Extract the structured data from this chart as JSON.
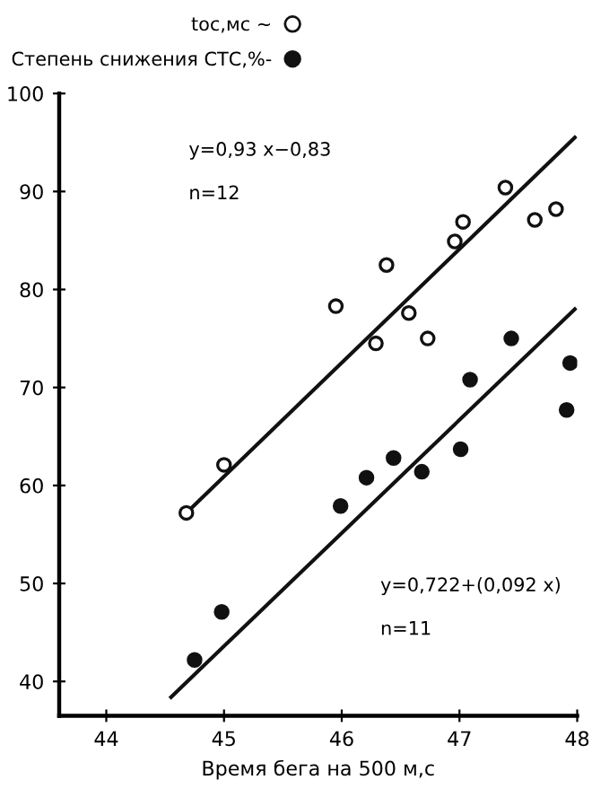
{
  "chart_data": {
    "type": "scatter",
    "xlabel": "Время бега на 500 м,с",
    "xlim": [
      43.6,
      48
    ],
    "ylim": [
      36.5,
      100
    ],
    "xticks": [
      44,
      45,
      46,
      47,
      48
    ],
    "yticks": [
      40,
      50,
      60,
      70,
      80,
      90,
      100
    ],
    "grid": false,
    "legend": "top left",
    "marker": "circle",
    "annotations": [
      "y=0,93 x−0,83",
      "n=12",
      "y=0,722+(0,092 x)",
      "n=11"
    ],
    "series": [
      {
        "name": "tос,мс ~",
        "color": "#ffffff",
        "x": [
          44.68,
          45.0,
          45.95,
          46.29,
          46.38,
          46.57,
          46.73,
          46.96,
          47.03,
          47.39,
          47.64,
          47.82
        ],
        "values": [
          57.2,
          62.1,
          78.3,
          74.5,
          82.5,
          77.6,
          75.0,
          84.9,
          86.9,
          90.4,
          87.1,
          88.2
        ]
      },
      {
        "name": "Степень снижения СТС,%-",
        "color": "#111111",
        "x": [
          44.75,
          44.98,
          45.99,
          46.21,
          46.44,
          46.68,
          47.01,
          47.09,
          47.44,
          47.91,
          47.94
        ],
        "values": [
          42.2,
          47.1,
          57.9,
          60.8,
          62.8,
          61.4,
          63.7,
          70.8,
          75.0,
          67.7,
          72.5
        ]
      },
      {
        "type": "line",
        "marker": "none",
        "color": "#111111",
        "x": [
          44.68,
          47.98
        ],
        "values": [
          57.2,
          95.5
        ]
      },
      {
        "type": "line",
        "marker": "none",
        "color": "#111111",
        "x": [
          44.55,
          47.98
        ],
        "values": [
          38.4,
          78.0
        ]
      }
    ]
  }
}
